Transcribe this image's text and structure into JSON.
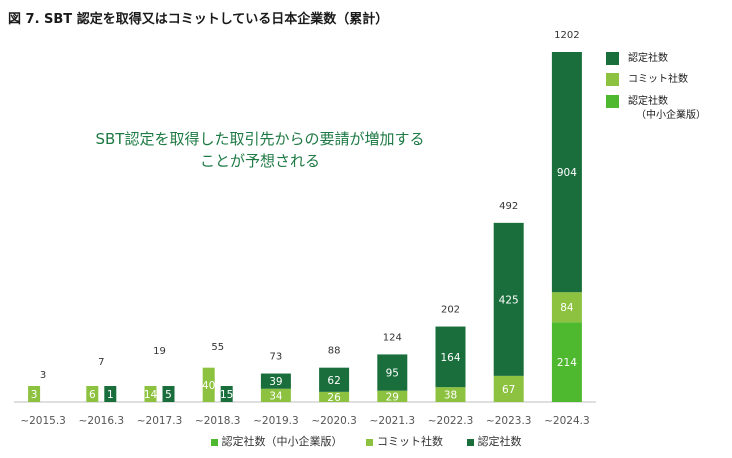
{
  "title": "図 7. SBT 認定を取得又はコミットしている日本企業数（累計）",
  "annotation": [
    "SBT認定を取得した取引先からの要請が増加する",
    "ことが予想される"
  ],
  "colors": {
    "sme": "#4eb82e",
    "commit": "#8cc23f",
    "certified": "#1a6e3c"
  },
  "legend_right": [
    {
      "label": "認定社数",
      "color_key": "certified"
    },
    {
      "label": "コミット社数",
      "color_key": "commit"
    },
    {
      "label": "認定社数",
      "label2": "（中小企業版）",
      "color_key": "sme"
    }
  ],
  "legend_bottom": [
    {
      "label": "認定社数（中小企業版）",
      "color_key": "sme"
    },
    {
      "label": "コミット社数",
      "color_key": "commit"
    },
    {
      "label": "認定社数",
      "color_key": "certified"
    }
  ],
  "chart_data": {
    "type": "bar",
    "stacked": true,
    "categories": [
      "~2015.3",
      "~2016.3",
      "~2017.3",
      "~2018.3",
      "~2019.3",
      "~2020.3",
      "~2021.3",
      "~2022.3",
      "~2023.3",
      "~2024.3"
    ],
    "series": [
      {
        "name": "認定社数（中小企業版）",
        "color_key": "sme",
        "values": [
          0,
          0,
          0,
          0,
          0,
          0,
          0,
          0,
          0,
          214
        ]
      },
      {
        "name": "コミット社数",
        "color_key": "commit",
        "values": [
          3,
          6,
          14,
          40,
          34,
          26,
          29,
          38,
          67,
          84
        ]
      },
      {
        "name": "認定社数",
        "color_key": "certified",
        "values": [
          0,
          1,
          5,
          15,
          39,
          62,
          95,
          164,
          425,
          904
        ]
      }
    ],
    "totals": [
      3,
      7,
      19,
      55,
      73,
      88,
      124,
      202,
      492,
      1202
    ],
    "ylim": [
      0,
      1202
    ]
  }
}
